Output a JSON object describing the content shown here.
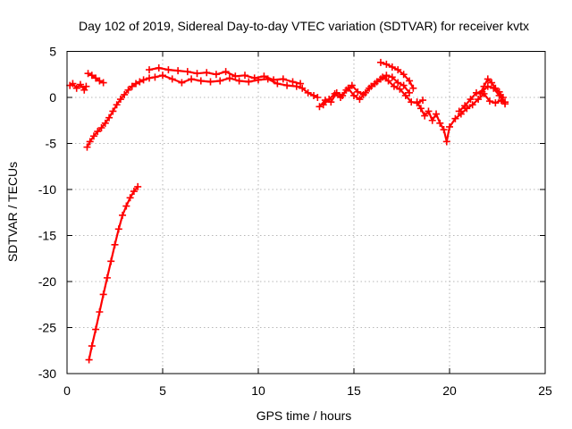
{
  "chart_data": {
    "type": "scatter",
    "title": "Day 102 of 2019, Sidereal Day-to-day VTEC variation (SDTVAR) for receiver kvtx",
    "xlabel": "GPS time / hours",
    "ylabel": "SDTVAR / TECUs",
    "xlim": [
      0,
      25
    ],
    "ylim": [
      -30,
      5
    ],
    "xticks": [
      0,
      5,
      10,
      15,
      20,
      25
    ],
    "yticks": [
      -30,
      -25,
      -20,
      -15,
      -10,
      -5,
      0,
      5
    ],
    "grid": true,
    "marker": "plus",
    "color": "#ff0000",
    "series": [
      {
        "name": "s1",
        "x": [
          0.15,
          0.3,
          0.5,
          0.7,
          0.9,
          1.0
        ],
        "y": [
          1.3,
          1.5,
          1.0,
          1.4,
          0.8,
          1.2
        ]
      },
      {
        "name": "s2",
        "x": [
          1.1,
          1.3,
          1.5,
          1.7,
          1.9
        ],
        "y": [
          2.6,
          2.4,
          2.1,
          1.8,
          1.6
        ]
      },
      {
        "name": "s3",
        "x": [
          1.05,
          1.2,
          1.4,
          1.6,
          1.8,
          2.0,
          2.2,
          2.4,
          2.6,
          2.8,
          3.0,
          3.2,
          3.4,
          3.6,
          3.8,
          4.0,
          4.3,
          4.6,
          5.0,
          5.5,
          6.0,
          6.5,
          7.0,
          7.5,
          8.0,
          8.5,
          9.0,
          9.5,
          10.0,
          10.5,
          11.0,
          11.5,
          12.0,
          12.3,
          12.6,
          12.9,
          13.1
        ],
        "y": [
          -5.4,
          -4.8,
          -4.2,
          -3.7,
          -3.3,
          -2.8,
          -2.2,
          -1.5,
          -0.8,
          -0.2,
          0.3,
          0.8,
          1.2,
          1.5,
          1.7,
          1.9,
          2.1,
          2.2,
          2.4,
          2.0,
          1.6,
          2.0,
          1.8,
          1.7,
          1.8,
          2.1,
          1.8,
          1.7,
          1.9,
          2.0,
          1.5,
          1.3,
          1.2,
          1.0,
          0.5,
          0.2,
          0.0
        ]
      },
      {
        "name": "s4",
        "x": [
          4.3,
          4.8,
          5.3,
          5.8,
          6.3,
          6.8,
          7.3,
          7.8,
          8.3,
          8.8,
          9.3,
          9.8,
          10.3,
          10.8,
          11.3,
          11.8,
          12.2
        ],
        "y": [
          3.0,
          3.2,
          3.0,
          2.9,
          2.8,
          2.6,
          2.7,
          2.5,
          2.8,
          2.3,
          2.4,
          2.1,
          2.3,
          1.9,
          2.0,
          1.7,
          1.5
        ]
      },
      {
        "name": "s5",
        "x": [
          1.15,
          1.3,
          1.5,
          1.7,
          1.9,
          2.1,
          2.3,
          2.5,
          2.7,
          2.9,
          3.1,
          3.3,
          3.5,
          3.7
        ],
        "y": [
          -28.5,
          -27.0,
          -25.2,
          -23.3,
          -21.4,
          -19.6,
          -17.8,
          -16.0,
          -14.3,
          -12.8,
          -11.8,
          -10.9,
          -10.2,
          -9.7
        ]
      },
      {
        "name": "s6",
        "x": [
          13.4,
          13.7,
          14.0,
          14.3,
          14.6,
          14.9,
          15.2,
          15.5,
          15.8,
          16.1,
          16.4,
          16.7,
          17.0,
          17.3,
          17.6,
          17.9
        ],
        "y": [
          -0.8,
          -0.2,
          0.4,
          0.0,
          0.8,
          1.3,
          0.6,
          0.3,
          1.0,
          1.5,
          2.0,
          2.4,
          2.2,
          1.6,
          1.3,
          0.5
        ]
      },
      {
        "name": "s7",
        "x": [
          13.2,
          13.5,
          13.8,
          14.1,
          14.4,
          14.7,
          15.0,
          15.3,
          15.6,
          15.9,
          16.2,
          16.5,
          16.8,
          17.1,
          17.4,
          17.7,
          18.0,
          18.3,
          18.6
        ],
        "y": [
          -1.0,
          -0.3,
          -0.5,
          0.5,
          0.2,
          1.0,
          0.2,
          -0.2,
          0.5,
          1.2,
          1.7,
          2.2,
          1.8,
          1.2,
          0.9,
          0.2,
          -0.5,
          -0.6,
          -0.3
        ]
      },
      {
        "name": "s8",
        "x": [
          16.4,
          16.7,
          17.0,
          17.3,
          17.6,
          17.9,
          18.1
        ],
        "y": [
          3.8,
          3.6,
          3.3,
          3.0,
          2.5,
          1.8,
          1.0
        ]
      },
      {
        "name": "s9",
        "x": [
          18.3,
          18.5,
          18.7,
          18.9,
          19.1,
          19.3,
          19.5,
          19.7,
          19.85,
          20.0,
          20.3,
          20.6,
          20.9,
          21.2,
          21.5,
          21.8,
          22.1,
          22.4,
          22.7,
          22.9
        ],
        "y": [
          -0.5,
          -1.2,
          -2.0,
          -1.5,
          -2.5,
          -1.8,
          -2.8,
          -3.5,
          -4.8,
          -3.2,
          -2.3,
          -1.8,
          -1.2,
          -0.8,
          -0.2,
          0.4,
          -0.4,
          -0.6,
          -0.3,
          -0.7
        ]
      },
      {
        "name": "s10",
        "x": [
          20.5,
          20.8,
          21.1,
          21.4,
          21.7,
          22.0,
          22.3,
          22.6,
          22.9
        ],
        "y": [
          -1.5,
          -0.9,
          -0.2,
          0.5,
          0.6,
          1.2,
          1.0,
          0.2,
          -0.5
        ]
      },
      {
        "name": "s11",
        "x": [
          21.6,
          21.8,
          22.0,
          22.2,
          22.4,
          22.6,
          22.8
        ],
        "y": [
          0.4,
          1.2,
          2.0,
          1.6,
          1.0,
          0.6,
          0.0
        ]
      }
    ]
  }
}
